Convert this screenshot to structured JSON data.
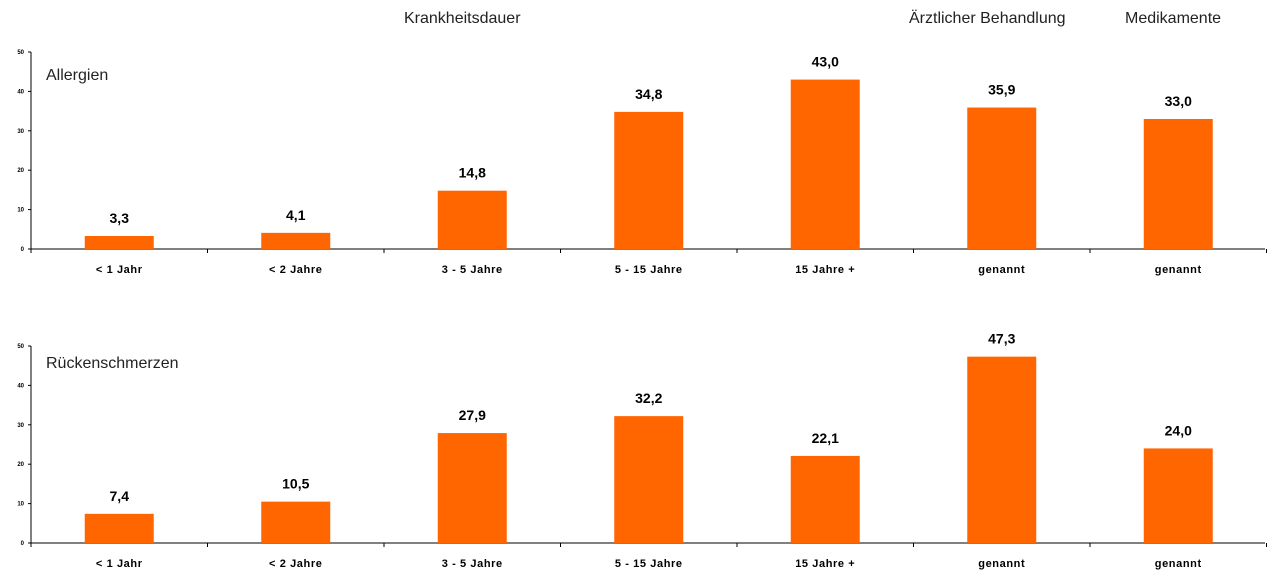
{
  "header": {
    "krankheitsdauer": "Krankheitsdauer",
    "aerztlich": "Ärztlicher Behandlung",
    "medikamente": "Medikamente"
  },
  "colors": {
    "bar": "#ff6600",
    "axis": "#000000"
  },
  "chart_data": [
    {
      "type": "bar",
      "title": "Allergien",
      "categories": [
        "< 1 Jahr",
        "< 2 Jahre",
        "3 - 5  Jahre",
        "5 - 15 Jahre",
        "15 Jahre +",
        "genannt",
        "genannt"
      ],
      "values": [
        3.3,
        4.1,
        14.8,
        34.8,
        43.0,
        35.9,
        33.0
      ],
      "labels": [
        "3,3",
        "4,1",
        "14,8",
        "34,8",
        "43,0",
        "35,9",
        "33,0"
      ],
      "yticks": [
        "0",
        "10",
        "20",
        "30",
        "40",
        "50"
      ],
      "ylim": [
        0,
        50
      ]
    },
    {
      "type": "bar",
      "title": "Rückenschmerzen",
      "categories": [
        "< 1 Jahr",
        "< 2 Jahre",
        "3 - 5  Jahre",
        "5 - 15 Jahre",
        "15 Jahre +",
        "genannt",
        "genannt"
      ],
      "values": [
        7.4,
        10.5,
        27.9,
        32.2,
        22.1,
        47.3,
        24.0
      ],
      "labels": [
        "7,4",
        "10,5",
        "27,9",
        "32,2",
        "22,1",
        "47,3",
        "24,0"
      ],
      "yticks": [
        "0",
        "10",
        "20",
        "30",
        "40",
        "50"
      ],
      "ylim": [
        0,
        50
      ]
    }
  ]
}
